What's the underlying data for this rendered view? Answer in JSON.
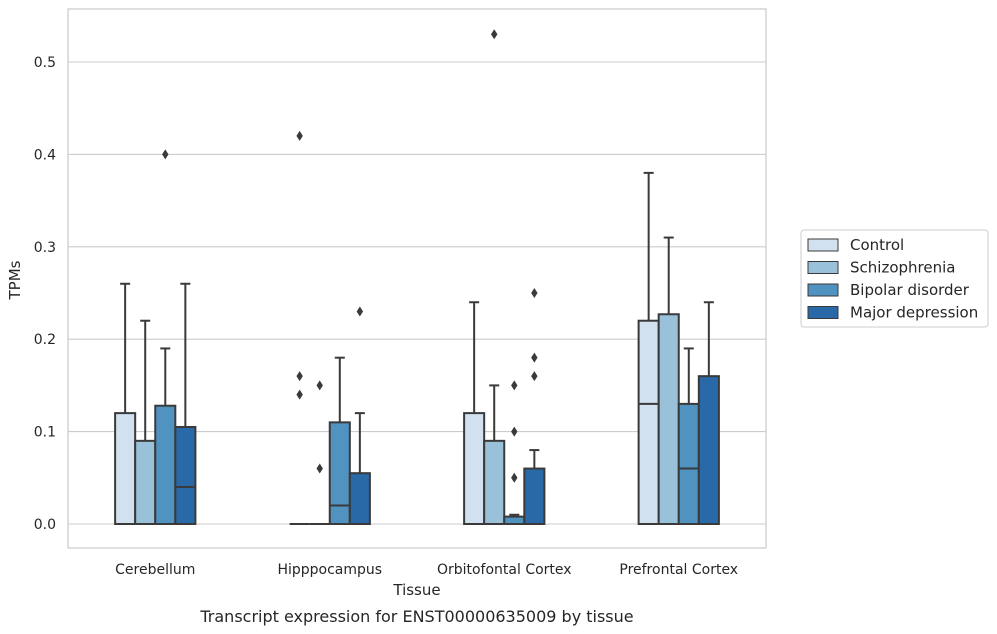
{
  "chart_data": {
    "type": "boxplot",
    "title": "",
    "caption": "Transcript expression for ENST00000635009 by tissue",
    "xlabel": "Tissue",
    "ylabel": "TPMs",
    "ylim": [
      -0.025,
      0.555
    ],
    "yticks": [
      0.0,
      0.1,
      0.2,
      0.3,
      0.4,
      0.5
    ],
    "ytick_labels": [
      "0.0",
      "0.1",
      "0.2",
      "0.3",
      "0.4",
      "0.5"
    ],
    "grid": "horizontal",
    "legend_placement": "right",
    "categories": [
      "Cerebellum",
      "Hipppocampus",
      "Orbitofontal Cortex",
      "Prefrontal Cortex"
    ],
    "series": [
      {
        "name": "Control",
        "color": "#d1e1ef",
        "boxes": [
          {
            "whislo": 0.0,
            "q1": 0.0,
            "med": 0.0,
            "q3": 0.12,
            "whishi": 0.26,
            "fliers": []
          },
          {
            "whislo": 0.0,
            "q1": 0.0,
            "med": 0.0,
            "q3": 0.0,
            "whishi": 0.0,
            "fliers": [
              0.42,
              0.16,
              0.14
            ]
          },
          {
            "whislo": 0.0,
            "q1": 0.0,
            "med": 0.0,
            "q3": 0.12,
            "whishi": 0.24,
            "fliers": []
          },
          {
            "whislo": 0.0,
            "q1": 0.0,
            "med": 0.13,
            "q3": 0.22,
            "whishi": 0.38,
            "fliers": []
          }
        ]
      },
      {
        "name": "Schizophrenia",
        "color": "#99c1da",
        "boxes": [
          {
            "whislo": 0.0,
            "q1": 0.0,
            "med": 0.0,
            "q3": 0.09,
            "whishi": 0.22,
            "fliers": []
          },
          {
            "whislo": 0.0,
            "q1": 0.0,
            "med": 0.0,
            "q3": 0.0,
            "whishi": 0.0,
            "fliers": [
              0.15,
              0.06
            ]
          },
          {
            "whislo": 0.0,
            "q1": 0.0,
            "med": 0.0,
            "q3": 0.09,
            "whishi": 0.15,
            "fliers": [
              0.53
            ]
          },
          {
            "whislo": 0.0,
            "q1": 0.0,
            "med": 0.0,
            "q3": 0.227,
            "whishi": 0.31,
            "fliers": []
          }
        ]
      },
      {
        "name": "Bipolar disorder",
        "color": "#5093c1",
        "boxes": [
          {
            "whislo": 0.0,
            "q1": 0.0,
            "med": 0.0,
            "q3": 0.128,
            "whishi": 0.19,
            "fliers": [
              0.4
            ]
          },
          {
            "whislo": 0.0,
            "q1": 0.0,
            "med": 0.02,
            "q3": 0.11,
            "whishi": 0.18,
            "fliers": []
          },
          {
            "whislo": 0.0,
            "q1": 0.0,
            "med": 0.0,
            "q3": 0.008,
            "whishi": 0.01,
            "fliers": [
              0.15,
              0.1,
              0.05
            ]
          },
          {
            "whislo": 0.0,
            "q1": 0.0,
            "med": 0.06,
            "q3": 0.13,
            "whishi": 0.19,
            "fliers": []
          }
        ]
      },
      {
        "name": "Major depression",
        "color": "#2a69a8",
        "boxes": [
          {
            "whislo": 0.0,
            "q1": 0.0,
            "med": 0.04,
            "q3": 0.105,
            "whishi": 0.26,
            "fliers": []
          },
          {
            "whislo": 0.0,
            "q1": 0.0,
            "med": 0.0,
            "q3": 0.055,
            "whishi": 0.12,
            "fliers": [
              0.23
            ]
          },
          {
            "whislo": 0.0,
            "q1": 0.0,
            "med": 0.0,
            "q3": 0.06,
            "whishi": 0.08,
            "fliers": [
              0.25,
              0.18,
              0.16
            ]
          },
          {
            "whislo": 0.0,
            "q1": 0.0,
            "med": 0.0,
            "q3": 0.16,
            "whishi": 0.24,
            "fliers": []
          }
        ]
      }
    ]
  }
}
